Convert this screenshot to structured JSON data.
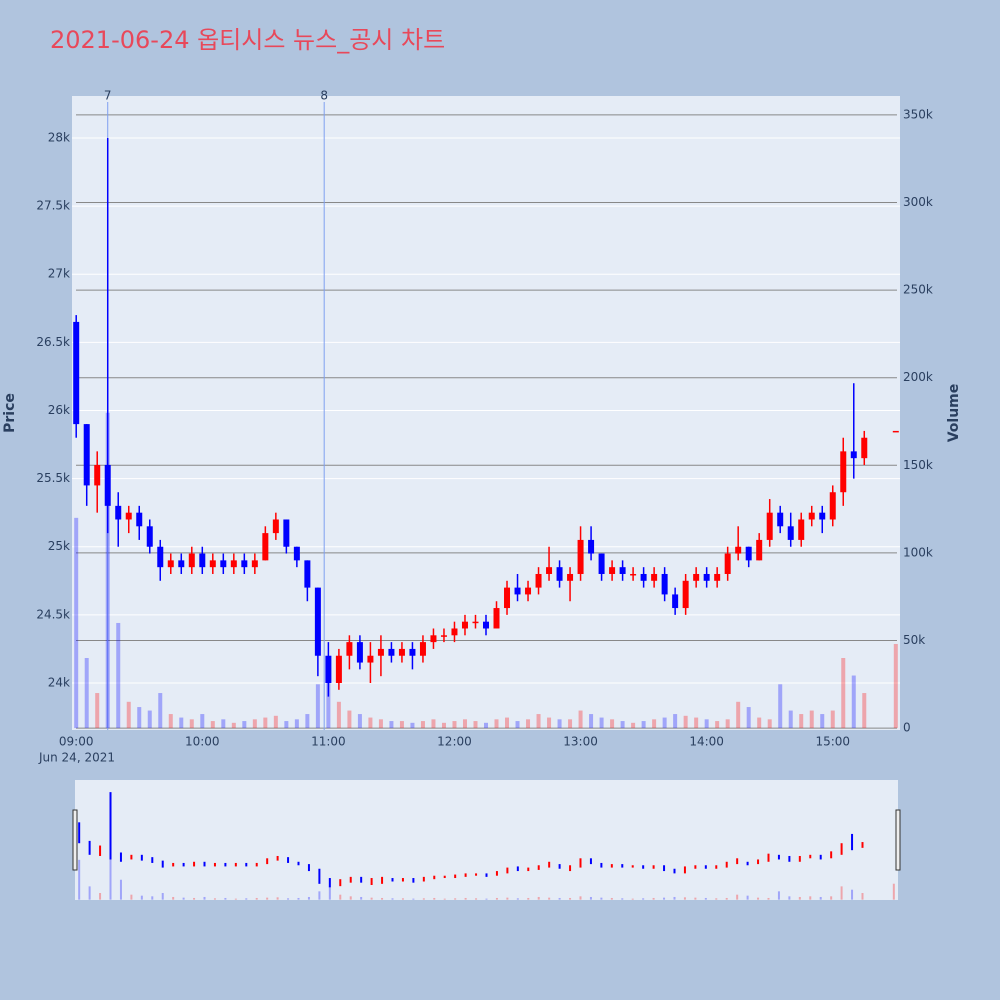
{
  "chart_data": {
    "type": "candlestick",
    "title": "2021-06-24 옵티시스 뉴스_공시 차트",
    "y_title": "Price",
    "y2_title": "Volume",
    "x_sublabel": "Jun 24, 2021",
    "x": [
      "09:00",
      "09:05",
      "09:10",
      "09:15",
      "09:20",
      "09:25",
      "09:30",
      "09:35",
      "09:40",
      "09:45",
      "09:50",
      "09:55",
      "10:00",
      "10:05",
      "10:10",
      "10:15",
      "10:20",
      "10:25",
      "10:30",
      "10:35",
      "10:40",
      "10:45",
      "10:50",
      "10:55",
      "11:00",
      "11:05",
      "11:10",
      "11:15",
      "11:20",
      "11:25",
      "11:30",
      "11:35",
      "11:40",
      "11:45",
      "11:50",
      "11:55",
      "12:00",
      "12:05",
      "12:10",
      "12:15",
      "12:20",
      "12:25",
      "12:30",
      "12:35",
      "12:40",
      "12:45",
      "12:50",
      "12:55",
      "13:00",
      "13:05",
      "13:10",
      "13:15",
      "13:20",
      "13:25",
      "13:30",
      "13:35",
      "13:40",
      "13:45",
      "13:50",
      "13:55",
      "14:00",
      "14:05",
      "14:10",
      "14:15",
      "14:20",
      "14:25",
      "14:30",
      "14:35",
      "14:40",
      "14:45",
      "14:50",
      "14:55",
      "15:00",
      "15:05",
      "15:10",
      "15:15",
      "15:30"
    ],
    "open": [
      26650,
      25900,
      25450,
      25600,
      25300,
      25200,
      25250,
      25150,
      25000,
      24850,
      24900,
      24850,
      24950,
      24850,
      24900,
      24850,
      24900,
      24850,
      24900,
      25100,
      25200,
      25000,
      24900,
      24700,
      24200,
      24000,
      24200,
      24300,
      24150,
      24200,
      24250,
      24200,
      24250,
      24200,
      24300,
      24350,
      24350,
      24400,
      24450,
      24450,
      24400,
      24550,
      24700,
      24650,
      24700,
      24800,
      24850,
      24750,
      24800,
      25050,
      24950,
      24800,
      24850,
      24800,
      24800,
      24750,
      24800,
      24650,
      24550,
      24750,
      24800,
      24750,
      24800,
      24950,
      25000,
      24900,
      25050,
      25250,
      25150,
      25050,
      25200,
      25250,
      25200,
      25400,
      25700,
      25650,
      25850
    ],
    "high": [
      26700,
      25900,
      25700,
      28000,
      25400,
      25300,
      25300,
      25200,
      25050,
      24950,
      24950,
      25000,
      25000,
      24950,
      24950,
      24950,
      24950,
      24950,
      25150,
      25250,
      25200,
      25000,
      24900,
      24700,
      24300,
      24250,
      24350,
      24350,
      24300,
      24350,
      24300,
      24300,
      24300,
      24350,
      24400,
      24400,
      24450,
      24500,
      24500,
      24500,
      24600,
      24750,
      24800,
      24750,
      24850,
      25000,
      24900,
      24850,
      25150,
      25150,
      24950,
      24900,
      24900,
      24850,
      24850,
      24850,
      24850,
      24700,
      24800,
      24850,
      24850,
      24850,
      25000,
      25150,
      25000,
      25100,
      25350,
      25300,
      25250,
      25250,
      25300,
      25300,
      25450,
      25800,
      26200,
      25850,
      25850
    ],
    "low": [
      25800,
      25300,
      25250,
      25100,
      25000,
      25100,
      25050,
      24950,
      24750,
      24800,
      24800,
      24800,
      24800,
      24800,
      24800,
      24800,
      24800,
      24800,
      24900,
      25050,
      24950,
      24850,
      24600,
      24050,
      23900,
      23950,
      24100,
      24100,
      24000,
      24050,
      24150,
      24150,
      24100,
      24150,
      24250,
      24300,
      24300,
      24350,
      24400,
      24350,
      24400,
      24500,
      24600,
      24600,
      24650,
      24750,
      24700,
      24600,
      24750,
      24900,
      24750,
      24750,
      24750,
      24750,
      24700,
      24700,
      24600,
      24500,
      24500,
      24700,
      24700,
      24700,
      24750,
      24900,
      24850,
      24900,
      25000,
      25100,
      25000,
      25000,
      25150,
      25100,
      25150,
      25300,
      25500,
      25600,
      25850
    ],
    "close": [
      25900,
      25450,
      25600,
      25300,
      25200,
      25250,
      25150,
      25000,
      24850,
      24900,
      24850,
      24950,
      24850,
      24900,
      24850,
      24900,
      24850,
      24900,
      25100,
      25200,
      25000,
      24900,
      24700,
      24200,
      24000,
      24200,
      24300,
      24150,
      24200,
      24250,
      24200,
      24250,
      24200,
      24300,
      24350,
      24350,
      24400,
      24450,
      24450,
      24400,
      24550,
      24700,
      24650,
      24700,
      24800,
      24850,
      24750,
      24800,
      25050,
      24950,
      24800,
      24850,
      24800,
      24800,
      24750,
      24800,
      24650,
      24550,
      24750,
      24800,
      24750,
      24800,
      24950,
      25000,
      24900,
      25050,
      25250,
      25150,
      25050,
      25200,
      25250,
      25200,
      25400,
      25700,
      25650,
      25800,
      25850
    ],
    "volume": [
      120000,
      40000,
      20000,
      180000,
      60000,
      15000,
      12000,
      10000,
      20000,
      8000,
      6000,
      5000,
      8000,
      4000,
      5000,
      3000,
      4000,
      5000,
      6000,
      7000,
      4000,
      5000,
      8000,
      25000,
      40000,
      15000,
      10000,
      8000,
      6000,
      5000,
      4000,
      4000,
      3000,
      4000,
      5000,
      3000,
      4000,
      5000,
      4000,
      3000,
      5000,
      6000,
      4000,
      5000,
      8000,
      6000,
      5000,
      5000,
      10000,
      8000,
      6000,
      5000,
      4000,
      3000,
      4000,
      5000,
      6000,
      8000,
      7000,
      6000,
      5000,
      4000,
      5000,
      15000,
      12000,
      6000,
      5000,
      25000,
      10000,
      8000,
      10000,
      8000,
      10000,
      40000,
      30000,
      20000,
      48000
    ],
    "increasing_color": "#ff0000",
    "decreasing_color": "#0000ff",
    "xlim": [
      "08:58",
      "15:32"
    ],
    "xticks": [
      "09:00",
      "10:00",
      "11:00",
      "12:00",
      "13:00",
      "14:00",
      "15:00"
    ],
    "ylim": [
      23655,
      28308
    ],
    "yticks": [
      {
        "value": 24000,
        "label": "24k"
      },
      {
        "value": 24500,
        "label": "24.5k"
      },
      {
        "value": 25000,
        "label": "25k"
      },
      {
        "value": 25500,
        "label": "25.5k"
      },
      {
        "value": 26000,
        "label": "26k"
      },
      {
        "value": 26500,
        "label": "26.5k"
      },
      {
        "value": 27000,
        "label": "27k"
      },
      {
        "value": 27500,
        "label": "27.5k"
      },
      {
        "value": 28000,
        "label": "28k"
      }
    ],
    "y2lim": [
      -1100,
      360800
    ],
    "y2ticks": [
      0,
      {
        "value": 50000,
        "label": "50k"
      },
      {
        "value": 100000,
        "label": "100k"
      },
      {
        "value": 150000,
        "label": "150k"
      },
      {
        "value": 200000,
        "label": "200k"
      },
      {
        "value": 250000,
        "label": "250k"
      },
      {
        "value": 300000,
        "label": "300k"
      },
      {
        "value": 350000,
        "label": "350k"
      }
    ],
    "annotations": [
      {
        "x": "09:15",
        "text": "7"
      },
      {
        "x": "10:58",
        "text": "8"
      }
    ]
  }
}
